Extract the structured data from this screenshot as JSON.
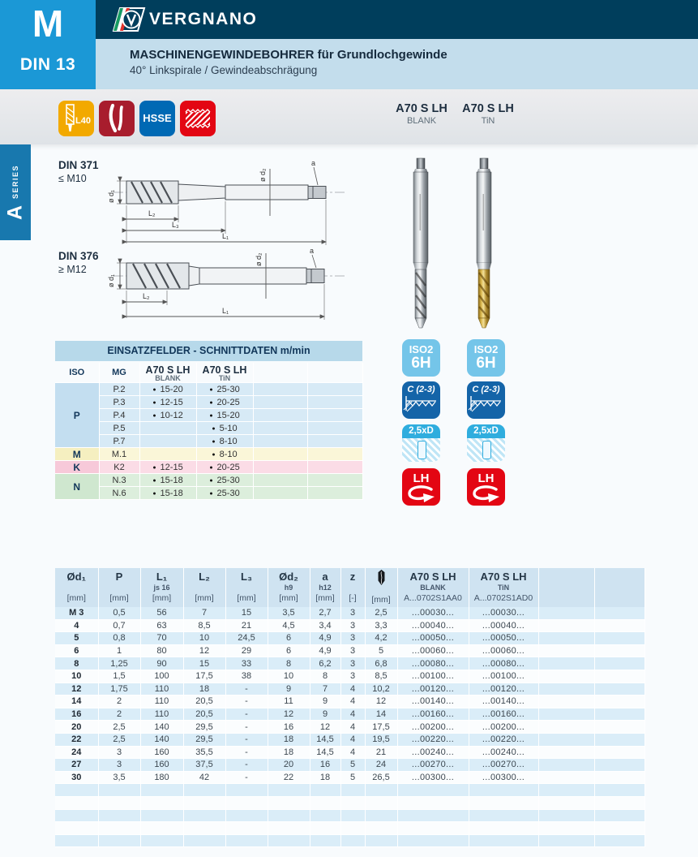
{
  "header": {
    "product_letter": "M",
    "standard": "DIN 13",
    "brand": "VERGNANO",
    "title": "MASCHINENGEWINDEBOHRER für Grundlochgewinde",
    "subtitle": "40° Linkspirale / Gewindeabschrägung",
    "colors": {
      "accent_blue": "#1b98d6",
      "navy": "#003e5c",
      "band_blue": "#c3ddec"
    }
  },
  "series_tab": {
    "letter": "A",
    "word": "SERIES",
    "color": "#1878ae"
  },
  "feature_icons": [
    {
      "name": "l40-spiral-tap-icon",
      "label": "L40",
      "color": "#f2a900"
    },
    {
      "name": "left-spiral-flutes-icon",
      "label": "",
      "color": "#a81d2d"
    },
    {
      "name": "hsse-material-icon",
      "label": "HSSE",
      "color": "#0069b4"
    },
    {
      "name": "blind-hole-thread-icon",
      "label": "",
      "color": "#e30613"
    }
  ],
  "variants": [
    {
      "name": "A70 S LH",
      "finish": "BLANK",
      "code": "A...0702S1AA0"
    },
    {
      "name": "A70 S LH",
      "finish": "TiN",
      "code": "A...0702S1AD0"
    }
  ],
  "drawings": [
    {
      "standard": "DIN 371",
      "range": "≤ M10",
      "labels": {
        "d1": "ø d₁",
        "d2": "ø d₂",
        "a": "a",
        "l1": "L₁",
        "l2": "L₂",
        "l3": "L₃"
      }
    },
    {
      "standard": "DIN 376",
      "range": "≥ M12",
      "labels": {
        "d1": "ø d₁",
        "d2": "ø d₂",
        "a": "a",
        "l1": "L₁",
        "l2": "L₂"
      }
    }
  ],
  "badges": {
    "tolerance": {
      "line1": "ISO2",
      "line2": "6H",
      "color": "#74c5e9"
    },
    "chamfer": {
      "label": "C (2-3)",
      "color": "#1464a8"
    },
    "depth": {
      "label": "2,5xD",
      "color": "#2fadde"
    },
    "direction": {
      "label": "LH",
      "color": "#e30613"
    }
  },
  "cutting_table": {
    "title": "EINSATZFELDER - SCHNITTDATEN m/min",
    "columns": {
      "iso": "ISO",
      "mg": "MG"
    },
    "groups": [
      {
        "iso": "P",
        "iso_color": "#c3def0",
        "row_color": "#d7eaf6",
        "rows": [
          {
            "mg": "P.2",
            "blank": "15-20",
            "tin": "25-30"
          },
          {
            "mg": "P.3",
            "blank": "12-15",
            "tin": "20-25"
          },
          {
            "mg": "P.4",
            "blank": "10-12",
            "tin": "15-20"
          },
          {
            "mg": "P.5",
            "blank": "",
            "tin": "5-10"
          },
          {
            "mg": "P.7",
            "blank": "",
            "tin": "8-10"
          }
        ]
      },
      {
        "iso": "M",
        "iso_color": "#f5efc0",
        "row_color": "#faf6d8",
        "rows": [
          {
            "mg": "M.1",
            "blank": "",
            "tin": "8-10"
          }
        ]
      },
      {
        "iso": "K",
        "iso_color": "#f7c9d9",
        "row_color": "#fbdce6",
        "rows": [
          {
            "mg": "K2",
            "blank": "12-15",
            "tin": "20-25"
          }
        ]
      },
      {
        "iso": "N",
        "iso_color": "#cfe7cf",
        "row_color": "#dceedc",
        "rows": [
          {
            "mg": "N.3",
            "blank": "15-18",
            "tin": "25-30"
          },
          {
            "mg": "N.6",
            "blank": "15-18",
            "tin": "25-30"
          }
        ]
      }
    ]
  },
  "main_table": {
    "columns": [
      {
        "sym": "Ød₁",
        "unit": "[mm]"
      },
      {
        "sym": "P",
        "unit": "[mm]"
      },
      {
        "sym": "L₁",
        "tol": "js 16",
        "unit": "[mm]"
      },
      {
        "sym": "L₂",
        "unit": "[mm]"
      },
      {
        "sym": "L₃",
        "unit": "[mm]"
      },
      {
        "sym": "Ød₂",
        "tol": "h9",
        "unit": "[mm]"
      },
      {
        "sym": "a",
        "tol": "h12",
        "unit": "[mm]"
      },
      {
        "sym": "z",
        "unit": "[-]"
      },
      {
        "icon": "tap-drill-icon",
        "unit": "[mm]"
      },
      {
        "name": "A70 S LH",
        "finish": "BLANK",
        "code": "A...0702S1AA0"
      },
      {
        "name": "A70 S LH",
        "finish": "TiN",
        "code": "A...0702S1AD0"
      },
      {},
      {}
    ],
    "rows": [
      {
        "size": "M 3",
        "values": [
          "0,5",
          "56",
          "7",
          "15",
          "3,5",
          "2,7",
          "3",
          "2,5"
        ],
        "code": "...00030..."
      },
      {
        "size": "4",
        "values": [
          "0,7",
          "63",
          "8,5",
          "21",
          "4,5",
          "3,4",
          "3",
          "3,3"
        ],
        "code": "...00040..."
      },
      {
        "size": "5",
        "values": [
          "0,8",
          "70",
          "10",
          "24,5",
          "6",
          "4,9",
          "3",
          "4,2"
        ],
        "code": "...00050..."
      },
      {
        "size": "6",
        "values": [
          "1",
          "80",
          "12",
          "29",
          "6",
          "4,9",
          "3",
          "5"
        ],
        "code": "...00060..."
      },
      {
        "size": "8",
        "values": [
          "1,25",
          "90",
          "15",
          "33",
          "8",
          "6,2",
          "3",
          "6,8"
        ],
        "code": "...00080..."
      },
      {
        "size": "10",
        "values": [
          "1,5",
          "100",
          "17,5",
          "38",
          "10",
          "8",
          "3",
          "8,5"
        ],
        "code": "...00100..."
      },
      {
        "size": "12",
        "values": [
          "1,75",
          "110",
          "18",
          "-",
          "9",
          "7",
          "4",
          "10,2"
        ],
        "code": "...00120..."
      },
      {
        "size": "14",
        "values": [
          "2",
          "110",
          "20,5",
          "-",
          "11",
          "9",
          "4",
          "12"
        ],
        "code": "...00140..."
      },
      {
        "size": "16",
        "values": [
          "2",
          "110",
          "20,5",
          "-",
          "12",
          "9",
          "4",
          "14"
        ],
        "code": "...00160..."
      },
      {
        "size": "20",
        "values": [
          "2,5",
          "140",
          "29,5",
          "-",
          "16",
          "12",
          "4",
          "17,5"
        ],
        "code": "...00200..."
      },
      {
        "size": "22",
        "values": [
          "2,5",
          "140",
          "29,5",
          "-",
          "18",
          "14,5",
          "4",
          "19,5"
        ],
        "code": "...00220..."
      },
      {
        "size": "24",
        "values": [
          "3",
          "160",
          "35,5",
          "-",
          "18",
          "14,5",
          "4",
          "21"
        ],
        "code": "...00240..."
      },
      {
        "size": "27",
        "values": [
          "3",
          "160",
          "37,5",
          "-",
          "20",
          "16",
          "5",
          "24"
        ],
        "code": "...00270..."
      },
      {
        "size": "30",
        "values": [
          "3,5",
          "180",
          "42",
          "-",
          "22",
          "18",
          "5",
          "26,5"
        ],
        "code": "...00300..."
      }
    ],
    "empty_rows": 5
  }
}
